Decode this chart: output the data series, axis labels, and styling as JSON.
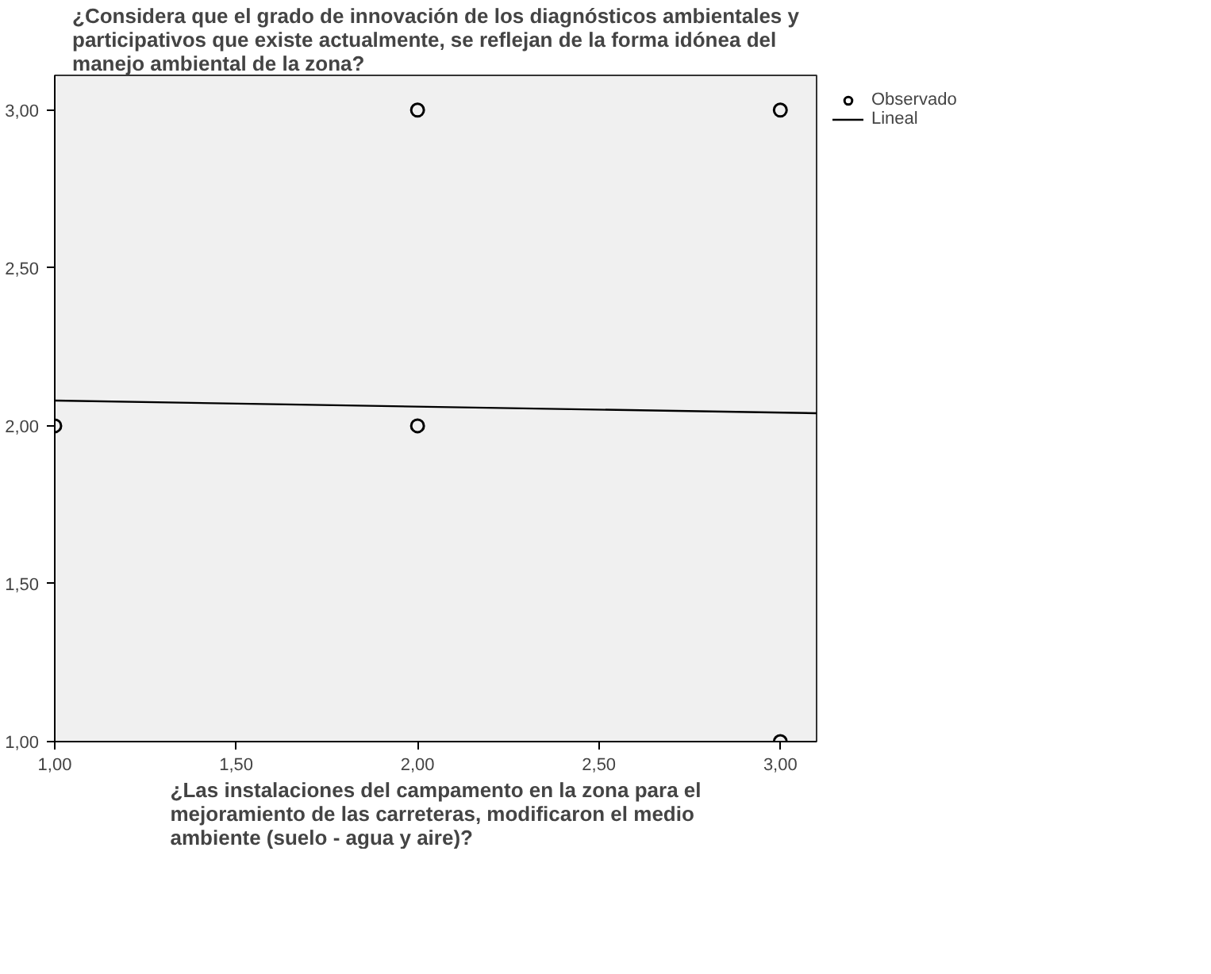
{
  "chart_data": {
    "type": "scatter",
    "title": "¿Considera que el grado de innovación de los diagnósticos ambientales y participativos que existe actualmente, se reflejan de la forma idónea del manejo ambiental de la zona?",
    "xlabel": "¿Las instalaciones del campamento en la zona para el mejoramiento de las carreteras, modificaron el medio ambiente (suelo - agua y aire)?",
    "x": [
      1,
      2,
      2,
      3,
      3
    ],
    "series": [
      {
        "name": "Observado",
        "color": "#000000",
        "values": [
          2,
          3,
          2,
          3,
          1
        ],
        "marker": "circle"
      },
      {
        "name": "Lineal",
        "type": "line",
        "color": "#000000",
        "x": [
          1,
          3.1
        ],
        "values": [
          2.08,
          2.04
        ]
      }
    ],
    "xlim": [
      1,
      3.1
    ],
    "ylim": [
      1,
      3.11
    ],
    "xticks": [
      {
        "value": 1,
        "label": "1,00"
      },
      {
        "value": 1.5,
        "label": "1,50"
      },
      {
        "value": 2,
        "label": "2,00"
      },
      {
        "value": 2.5,
        "label": "2,50"
      },
      {
        "value": 3,
        "label": "3,00"
      }
    ],
    "yticks": [
      {
        "value": 1,
        "label": "1,00"
      },
      {
        "value": 1.5,
        "label": "1,50"
      },
      {
        "value": 2,
        "label": "2,00"
      },
      {
        "value": 2.5,
        "label": "2,50"
      },
      {
        "value": 3,
        "label": "3,00"
      }
    ],
    "grid": false,
    "legend": "top right"
  }
}
